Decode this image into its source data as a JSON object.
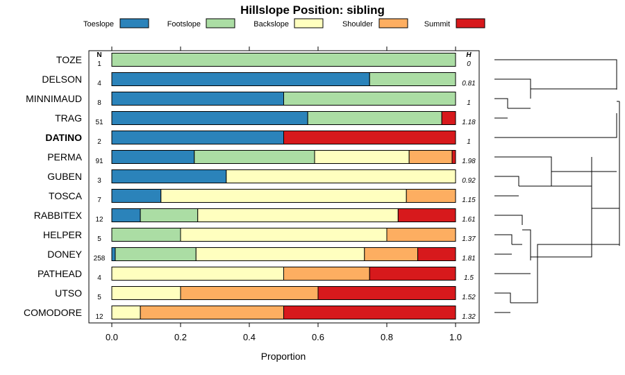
{
  "chart_data": {
    "type": "bar",
    "orientation": "horizontal",
    "stacked": true,
    "title": "Hillslope Position: sibling",
    "xlabel": "Proportion",
    "ylabel": "",
    "xlim": [
      0,
      1
    ],
    "x_ticks": [
      "0.0",
      "0.2",
      "0.4",
      "0.6",
      "0.8",
      "1.0"
    ],
    "legend_position": "top",
    "n_header": "N",
    "h_header": "H",
    "series": [
      {
        "name": "Toeslope",
        "color": "#2b83ba"
      },
      {
        "name": "Footslope",
        "color": "#abdda4"
      },
      {
        "name": "Backslope",
        "color": "#ffffbf"
      },
      {
        "name": "Shoulder",
        "color": "#fdae61"
      },
      {
        "name": "Summit",
        "color": "#d7191c"
      }
    ],
    "categories": [
      {
        "label": "TOZE",
        "n": "1",
        "h": "0",
        "values": [
          0,
          1,
          0,
          0,
          0
        ],
        "bold": false
      },
      {
        "label": "DELSON",
        "n": "4",
        "h": "0.81",
        "values": [
          0.75,
          0.25,
          0,
          0,
          0
        ],
        "bold": false
      },
      {
        "label": "MINNIMAUD",
        "n": "8",
        "h": "1",
        "values": [
          0.5,
          0.5,
          0,
          0,
          0
        ],
        "bold": false
      },
      {
        "label": "TRAG",
        "n": "51",
        "h": "1.18",
        "values": [
          0.57,
          0.39,
          0,
          0,
          0.04
        ],
        "bold": false
      },
      {
        "label": "DATINO",
        "n": "2",
        "h": "1",
        "values": [
          0.5,
          0,
          0,
          0,
          0.5
        ],
        "bold": true
      },
      {
        "label": "PERMA",
        "n": "91",
        "h": "1.98",
        "values": [
          0.24,
          0.35,
          0.275,
          0.125,
          0.01
        ],
        "bold": false
      },
      {
        "label": "GUBEN",
        "n": "3",
        "h": "0.92",
        "values": [
          0.333,
          0,
          0.667,
          0,
          0
        ],
        "bold": false
      },
      {
        "label": "TOSCA",
        "n": "7",
        "h": "1.15",
        "values": [
          0.143,
          0,
          0.714,
          0.143,
          0
        ],
        "bold": false
      },
      {
        "label": "RABBITEX",
        "n": "12",
        "h": "1.61",
        "values": [
          0.083,
          0.167,
          0.583,
          0,
          0.167
        ],
        "bold": false
      },
      {
        "label": "HELPER",
        "n": "5",
        "h": "1.37",
        "values": [
          0,
          0.2,
          0.6,
          0.2,
          0
        ],
        "bold": false
      },
      {
        "label": "DONEY",
        "n": "258",
        "h": "1.81",
        "values": [
          0.01,
          0.235,
          0.49,
          0.155,
          0.11
        ],
        "bold": false
      },
      {
        "label": "PATHEAD",
        "n": "4",
        "h": "1.5",
        "values": [
          0,
          0,
          0.5,
          0.25,
          0.25
        ],
        "bold": false
      },
      {
        "label": "UTSO",
        "n": "5",
        "h": "1.52",
        "values": [
          0,
          0,
          0.2,
          0.4,
          0.4
        ],
        "bold": false
      },
      {
        "label": "COMODORE",
        "n": "12",
        "h": "1.32",
        "values": [
          0,
          0,
          0.083,
          0.417,
          0.5
        ],
        "bold": false
      }
    ]
  }
}
